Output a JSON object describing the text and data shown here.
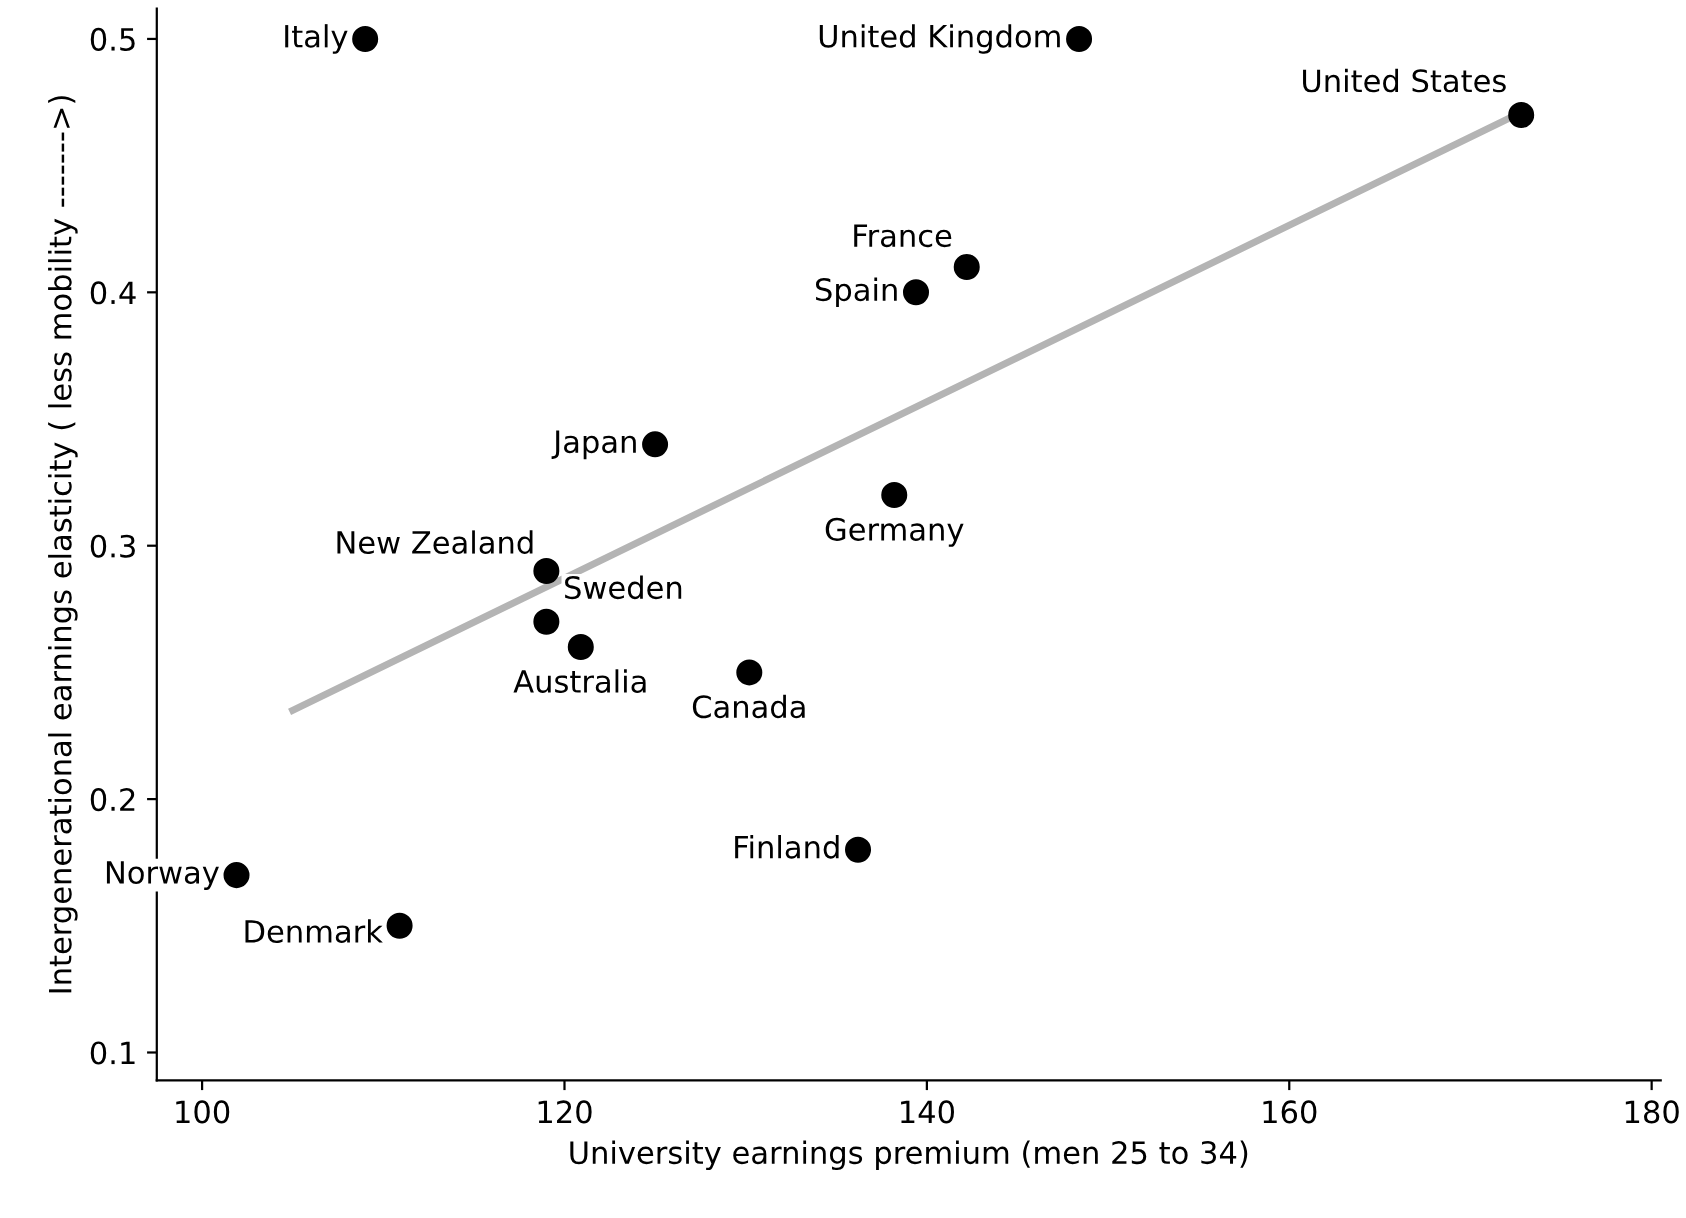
{
  "chart_data": {
    "type": "scatter",
    "xlabel": "University earnings premium (men 25 to 34)",
    "ylabel": "Intergenerational earnings elasticity ( less mobility ------->)",
    "xlim": [
      97.5,
      180.5
    ],
    "xticks": [
      100,
      120,
      140,
      160,
      180
    ],
    "ylim": [
      0.089,
      0.512
    ],
    "yticks": [
      0.1,
      0.2,
      0.3,
      0.4,
      0.5
    ],
    "grid": false,
    "series": [
      {
        "marker": "circle",
        "color": "#000000",
        "x": [
          109,
          148.4,
          172.8,
          142.2,
          139.4,
          125,
          138.2,
          119,
          119,
          120.9,
          130.2,
          136.2,
          101.9,
          110.9
        ],
        "values": [
          0.5,
          0.5,
          0.47,
          0.41,
          0.4,
          0.34,
          0.32,
          0.29,
          0.27,
          0.26,
          0.25,
          0.18,
          0.17,
          0.15
        ]
      },
      {
        "type": "line",
        "marker": "none",
        "color": "#b4b4b4",
        "x": [
          105.0,
          172.8
        ],
        "values": [
          0.235,
          0.471
        ]
      }
    ],
    "annotations": [
      {
        "text": "Italy",
        "x": 109,
        "y": 0.5
      },
      {
        "text": "United Kingdom",
        "x": 148.4,
        "y": 0.5
      },
      {
        "text": "United States",
        "x": 172.8,
        "y": 0.47
      },
      {
        "text": "France",
        "x": 142.2,
        "y": 0.41
      },
      {
        "text": "Spain",
        "x": 139.4,
        "y": 0.4
      },
      {
        "text": "Japan",
        "x": 125,
        "y": 0.34
      },
      {
        "text": "Germany",
        "x": 138.2,
        "y": 0.32
      },
      {
        "text": "New Zealand",
        "x": 119,
        "y": 0.29
      },
      {
        "text": "Sweden",
        "x": 119,
        "y": 0.27
      },
      {
        "text": "Australia",
        "x": 120.9,
        "y": 0.26
      },
      {
        "text": "Canada",
        "x": 130.2,
        "y": 0.25
      },
      {
        "text": "Finland",
        "x": 136.2,
        "y": 0.18
      },
      {
        "text": "Norway",
        "x": 101.9,
        "y": 0.17
      },
      {
        "text": "Denmark",
        "x": 110.9,
        "y": 0.15
      }
    ]
  }
}
